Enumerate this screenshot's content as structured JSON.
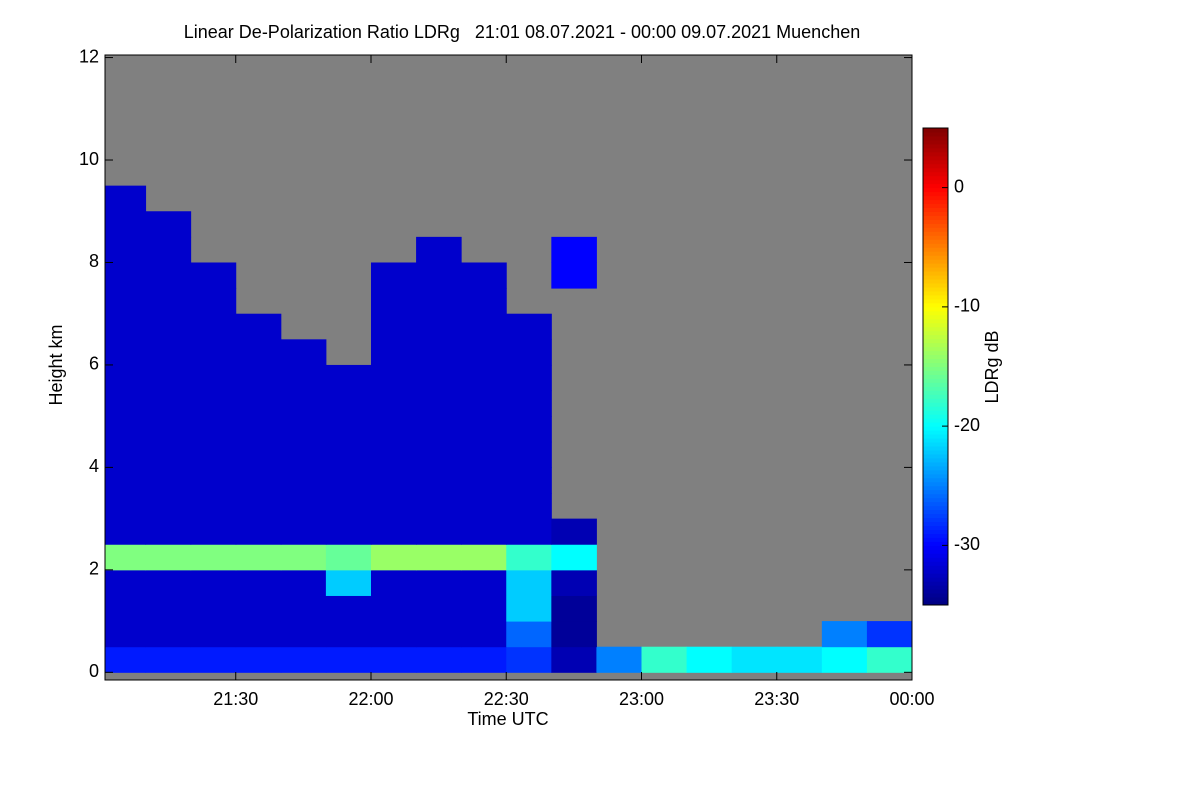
{
  "chart_data": {
    "type": "heatmap",
    "title": "Linear De-Polarization Ratio LDRg   21:01 08.07.2021 - 00:00 09.07.2021 Muenchen",
    "x_label": "Time UTC",
    "y_label": "Height km",
    "colorbar_label": "LDRg dB",
    "xlim": [
      21.0167,
      24.0
    ],
    "xticks": [
      {
        "value": 21.5,
        "label": "21:30"
      },
      {
        "value": 22.0,
        "label": "22:00"
      },
      {
        "value": 22.5,
        "label": "22:30"
      },
      {
        "value": 23.0,
        "label": "23:00"
      },
      {
        "value": 23.5,
        "label": "23:30"
      },
      {
        "value": 24.0,
        "label": "00:00"
      }
    ],
    "ylim": [
      -0.15,
      12.05
    ],
    "yticks": [
      0,
      2,
      4,
      6,
      8,
      10,
      12
    ],
    "zlim": [
      -35,
      5
    ],
    "zticks": [
      0,
      -10,
      -20,
      -30
    ],
    "colormap": "jet",
    "no_data_color": "#808080",
    "x_bins": [
      21.0167,
      21.1667,
      21.3333,
      21.5,
      21.6667,
      21.8333,
      22.0,
      22.1667,
      22.3333,
      22.5,
      22.6667,
      22.8333,
      23.0,
      23.1667,
      23.3333,
      23.5,
      23.6667,
      23.8333,
      24.0
    ],
    "y_bins": [
      0,
      0.5,
      1,
      1.5,
      2,
      2.5,
      3,
      3.5,
      4,
      4.5,
      5,
      5.5,
      6,
      6.5,
      7,
      7.5,
      8,
      8.5,
      9,
      9.5,
      10,
      10.5,
      11,
      11.5,
      12
    ],
    "z": [
      [
        -29,
        -29,
        -29,
        -29,
        -29,
        -29,
        -29,
        -29,
        -29,
        -28,
        -33,
        -25,
        -18,
        -20,
        -21,
        -21,
        -20,
        -18
      ],
      [
        -32,
        -32,
        -32,
        -32,
        -32,
        -32,
        -32,
        -32,
        -32,
        -26,
        -34,
        null,
        null,
        null,
        null,
        null,
        -25,
        -28
      ],
      [
        -32,
        -32,
        -32,
        -32,
        -32,
        -32,
        -32,
        -32,
        -32,
        -22,
        -34,
        null,
        null,
        null,
        null,
        null,
        null,
        null
      ],
      [
        -32,
        -32,
        -32,
        -32,
        -32,
        -22,
        -32,
        -32,
        -32,
        -22,
        -33,
        null,
        null,
        null,
        null,
        null,
        null,
        null
      ],
      [
        -15,
        -15,
        -15,
        -15,
        -15,
        -16,
        -14,
        -14,
        -14,
        -18,
        -20,
        null,
        null,
        null,
        null,
        null,
        null,
        null
      ],
      [
        -32,
        -32,
        -32,
        -32,
        -32,
        -32,
        -32,
        -32,
        -32,
        -32,
        -33,
        null,
        null,
        null,
        null,
        null,
        null,
        null
      ],
      [
        -32,
        -32,
        -32,
        -32,
        -32,
        -32,
        -32,
        -32,
        -32,
        -32,
        null,
        null,
        null,
        null,
        null,
        null,
        null,
        null
      ],
      [
        -32,
        -32,
        -32,
        -32,
        -32,
        -32,
        -32,
        -32,
        -32,
        -32,
        null,
        null,
        null,
        null,
        null,
        null,
        null,
        null
      ],
      [
        -32,
        -32,
        -32,
        -32,
        -32,
        -32,
        -32,
        -32,
        -32,
        -32,
        null,
        null,
        null,
        null,
        null,
        null,
        null,
        null
      ],
      [
        -32,
        -32,
        -32,
        -32,
        -32,
        -32,
        -32,
        -32,
        -32,
        -32,
        null,
        null,
        null,
        null,
        null,
        null,
        null,
        null
      ],
      [
        -32,
        -32,
        -32,
        -32,
        -32,
        -32,
        -32,
        -32,
        -32,
        -32,
        null,
        null,
        null,
        null,
        null,
        null,
        null,
        null
      ],
      [
        -32,
        -32,
        -32,
        -32,
        -32,
        -32,
        -32,
        -32,
        -32,
        -32,
        null,
        null,
        null,
        null,
        null,
        null,
        null,
        null
      ],
      [
        -32,
        -32,
        -32,
        -32,
        -32,
        null,
        -32,
        -32,
        -32,
        -32,
        null,
        null,
        null,
        null,
        null,
        null,
        null,
        null
      ],
      [
        -32,
        -32,
        -32,
        -32,
        null,
        null,
        -32,
        -32,
        -32,
        -32,
        null,
        null,
        null,
        null,
        null,
        null,
        null,
        null
      ],
      [
        -32,
        -32,
        -32,
        null,
        null,
        null,
        -32,
        -32,
        -32,
        null,
        null,
        null,
        null,
        null,
        null,
        null,
        null,
        null
      ],
      [
        -32,
        -32,
        -32,
        null,
        null,
        null,
        -32,
        -32,
        -32,
        null,
        -30,
        null,
        null,
        null,
        null,
        null,
        null,
        null
      ],
      [
        -32,
        -32,
        null,
        null,
        null,
        null,
        null,
        -32,
        null,
        null,
        -30,
        null,
        null,
        null,
        null,
        null,
        null,
        null
      ],
      [
        -32,
        -32,
        null,
        null,
        null,
        null,
        null,
        null,
        null,
        null,
        null,
        null,
        null,
        null,
        null,
        null,
        null,
        null
      ],
      [
        -32,
        null,
        null,
        null,
        null,
        null,
        null,
        null,
        null,
        null,
        null,
        null,
        null,
        null,
        null,
        null,
        null,
        null
      ],
      [
        null,
        null,
        null,
        null,
        null,
        null,
        null,
        null,
        null,
        null,
        null,
        null,
        null,
        null,
        null,
        null,
        null,
        null
      ],
      [
        null,
        null,
        null,
        null,
        null,
        null,
        null,
        null,
        null,
        null,
        null,
        null,
        null,
        null,
        null,
        null,
        null,
        null
      ],
      [
        null,
        null,
        null,
        null,
        null,
        null,
        null,
        null,
        null,
        null,
        null,
        null,
        null,
        null,
        null,
        null,
        null,
        null
      ],
      [
        null,
        null,
        null,
        null,
        null,
        null,
        null,
        null,
        null,
        null,
        null,
        null,
        null,
        null,
        null,
        null,
        null,
        null
      ],
      [
        null,
        null,
        null,
        null,
        null,
        null,
        null,
        null,
        null,
        null,
        null,
        null,
        null,
        null,
        null,
        null,
        null,
        null
      ]
    ]
  }
}
